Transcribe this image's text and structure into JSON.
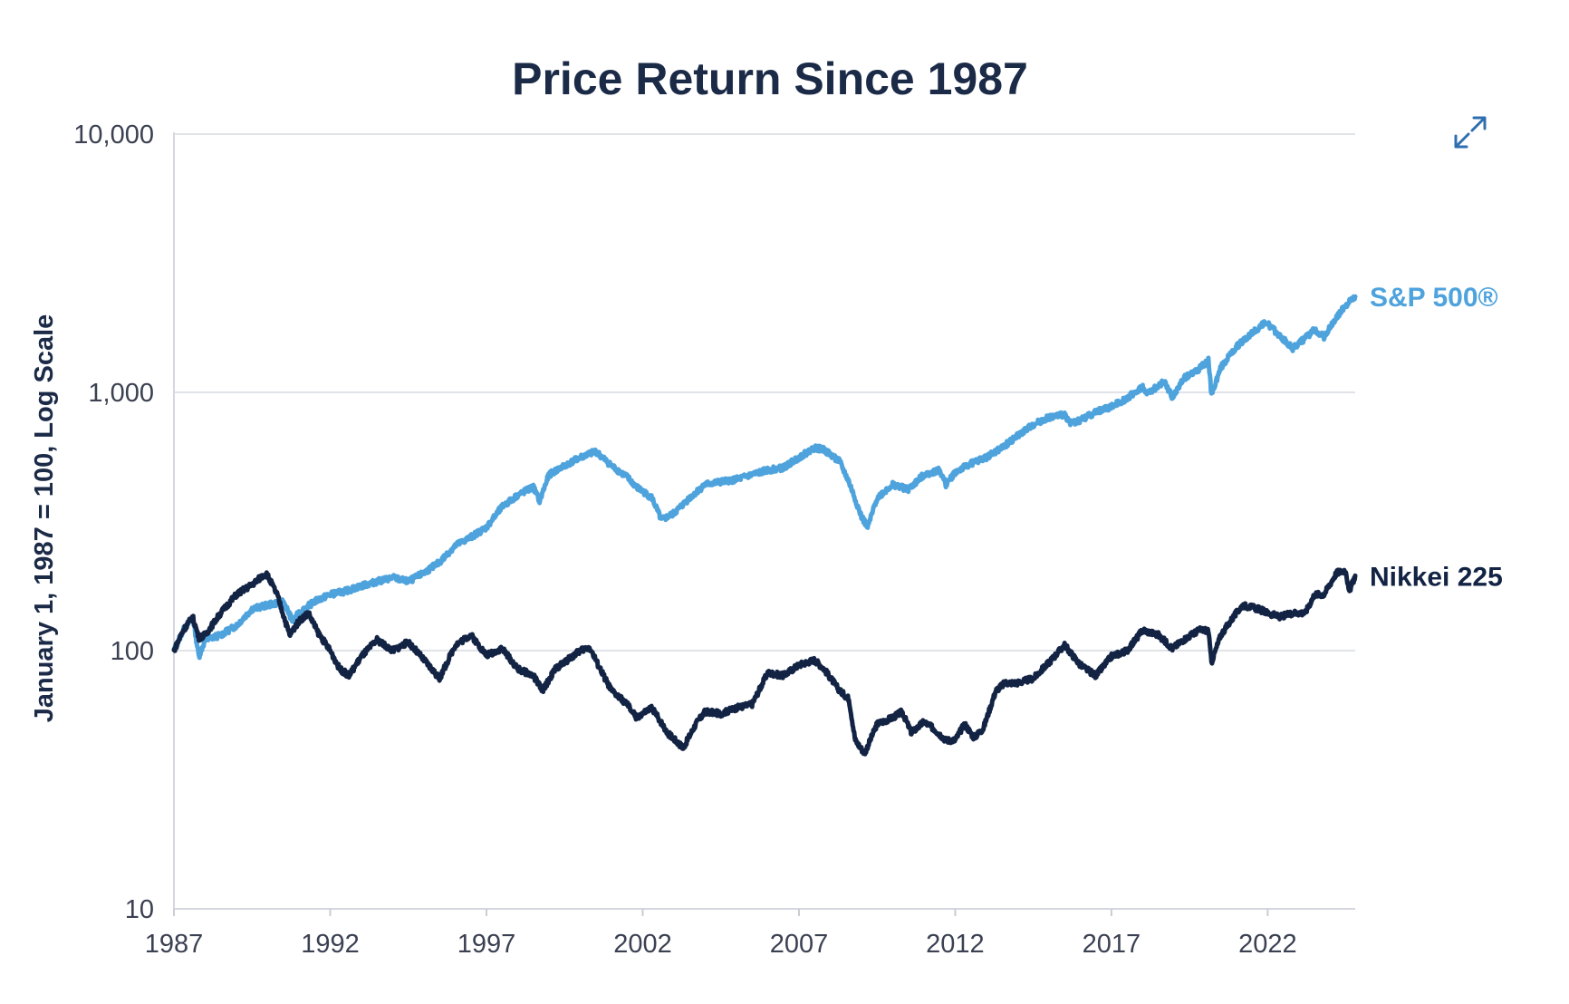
{
  "chart_data": {
    "type": "line",
    "title": "Price Return Since 1987",
    "xlabel": "",
    "ylabel": "January 1, 1987 = 100, Log Scale",
    "y_scale": "log",
    "ylim": [
      10,
      10000
    ],
    "xlim": [
      1987,
      2024.8
    ],
    "y_ticks": [
      {
        "value": 10,
        "label": "10"
      },
      {
        "value": 100,
        "label": "100"
      },
      {
        "value": 1000,
        "label": "1,000"
      },
      {
        "value": 10000,
        "label": "10,000"
      }
    ],
    "x_ticks": [
      {
        "value": 1987,
        "label": "1987"
      },
      {
        "value": 1992,
        "label": "1992"
      },
      {
        "value": 1997,
        "label": "1997"
      },
      {
        "value": 2002,
        "label": "2002"
      },
      {
        "value": 2007,
        "label": "2007"
      },
      {
        "value": 2012,
        "label": "2012"
      },
      {
        "value": 2017,
        "label": "2017"
      },
      {
        "value": 2022,
        "label": "2022"
      }
    ],
    "gridlines": "horizontal",
    "series": [
      {
        "name": "S&P 500®",
        "color": "#4ea3dd",
        "points": [
          [
            1987.0,
            100
          ],
          [
            1987.3,
            120
          ],
          [
            1987.6,
            135
          ],
          [
            1987.8,
            95
          ],
          [
            1988.0,
            110
          ],
          [
            1988.5,
            115
          ],
          [
            1989.0,
            125
          ],
          [
            1989.5,
            145
          ],
          [
            1990.0,
            150
          ],
          [
            1990.5,
            155
          ],
          [
            1990.8,
            130
          ],
          [
            1991.0,
            140
          ],
          [
            1991.5,
            155
          ],
          [
            1992.0,
            165
          ],
          [
            1992.5,
            170
          ],
          [
            1993.0,
            178
          ],
          [
            1993.5,
            185
          ],
          [
            1994.0,
            192
          ],
          [
            1994.5,
            185
          ],
          [
            1995.0,
            200
          ],
          [
            1995.5,
            220
          ],
          [
            1996.0,
            255
          ],
          [
            1996.5,
            275
          ],
          [
            1997.0,
            300
          ],
          [
            1997.5,
            360
          ],
          [
            1998.0,
            400
          ],
          [
            1998.5,
            430
          ],
          [
            1998.7,
            380
          ],
          [
            1999.0,
            480
          ],
          [
            1999.5,
            520
          ],
          [
            2000.0,
            560
          ],
          [
            2000.5,
            590
          ],
          [
            2001.0,
            520
          ],
          [
            2001.5,
            470
          ],
          [
            2001.8,
            430
          ],
          [
            2002.3,
            390
          ],
          [
            2002.6,
            320
          ],
          [
            2003.0,
            340
          ],
          [
            2003.5,
            390
          ],
          [
            2004.0,
            440
          ],
          [
            2004.5,
            450
          ],
          [
            2005.0,
            460
          ],
          [
            2005.5,
            480
          ],
          [
            2006.0,
            500
          ],
          [
            2006.5,
            510
          ],
          [
            2007.0,
            560
          ],
          [
            2007.5,
            610
          ],
          [
            2007.8,
            600
          ],
          [
            2008.3,
            540
          ],
          [
            2008.6,
            450
          ],
          [
            2009.0,
            330
          ],
          [
            2009.2,
            300
          ],
          [
            2009.5,
            390
          ],
          [
            2010.0,
            440
          ],
          [
            2010.5,
            420
          ],
          [
            2011.0,
            480
          ],
          [
            2011.5,
            500
          ],
          [
            2011.7,
            440
          ],
          [
            2012.0,
            490
          ],
          [
            2012.5,
            530
          ],
          [
            2013.0,
            560
          ],
          [
            2013.5,
            610
          ],
          [
            2014.0,
            680
          ],
          [
            2014.5,
            750
          ],
          [
            2015.0,
            800
          ],
          [
            2015.5,
            820
          ],
          [
            2015.7,
            760
          ],
          [
            2016.0,
            780
          ],
          [
            2016.5,
            840
          ],
          [
            2017.0,
            880
          ],
          [
            2017.5,
            950
          ],
          [
            2018.0,
            1050
          ],
          [
            2018.1,
            980
          ],
          [
            2018.7,
            1100
          ],
          [
            2018.95,
            950
          ],
          [
            2019.3,
            1130
          ],
          [
            2019.8,
            1230
          ],
          [
            2020.1,
            1330
          ],
          [
            2020.2,
            980
          ],
          [
            2020.5,
            1250
          ],
          [
            2021.0,
            1500
          ],
          [
            2021.5,
            1700
          ],
          [
            2021.95,
            1870
          ],
          [
            2022.4,
            1650
          ],
          [
            2022.8,
            1480
          ],
          [
            2023.2,
            1620
          ],
          [
            2023.5,
            1750
          ],
          [
            2023.8,
            1640
          ],
          [
            2024.2,
            1950
          ],
          [
            2024.5,
            2180
          ],
          [
            2024.8,
            2350
          ]
        ]
      },
      {
        "name": "Nikkei 225",
        "color": "#132344",
        "points": [
          [
            1987.0,
            100
          ],
          [
            1987.3,
            120
          ],
          [
            1987.6,
            135
          ],
          [
            1987.8,
            112
          ],
          [
            1988.0,
            115
          ],
          [
            1988.5,
            140
          ],
          [
            1989.0,
            165
          ],
          [
            1989.5,
            180
          ],
          [
            1989.95,
            200
          ],
          [
            1990.3,
            165
          ],
          [
            1990.7,
            115
          ],
          [
            1991.0,
            130
          ],
          [
            1991.3,
            140
          ],
          [
            1991.6,
            118
          ],
          [
            1992.0,
            100
          ],
          [
            1992.3,
            85
          ],
          [
            1992.6,
            80
          ],
          [
            1993.0,
            95
          ],
          [
            1993.5,
            110
          ],
          [
            1994.0,
            100
          ],
          [
            1994.5,
            108
          ],
          [
            1995.0,
            92
          ],
          [
            1995.5,
            78
          ],
          [
            1996.0,
            105
          ],
          [
            1996.5,
            115
          ],
          [
            1997.0,
            96
          ],
          [
            1997.5,
            102
          ],
          [
            1998.0,
            85
          ],
          [
            1998.5,
            80
          ],
          [
            1998.8,
            70
          ],
          [
            1999.2,
            85
          ],
          [
            1999.6,
            92
          ],
          [
            2000.0,
            100
          ],
          [
            2000.3,
            103
          ],
          [
            2000.7,
            82
          ],
          [
            2001.0,
            70
          ],
          [
            2001.5,
            62
          ],
          [
            2001.8,
            55
          ],
          [
            2002.3,
            60
          ],
          [
            2002.8,
            48
          ],
          [
            2003.3,
            42
          ],
          [
            2003.7,
            52
          ],
          [
            2004.0,
            58
          ],
          [
            2004.5,
            57
          ],
          [
            2005.0,
            60
          ],
          [
            2005.5,
            62
          ],
          [
            2006.0,
            82
          ],
          [
            2006.5,
            80
          ],
          [
            2007.0,
            88
          ],
          [
            2007.5,
            92
          ],
          [
            2007.8,
            85
          ],
          [
            2008.3,
            70
          ],
          [
            2008.6,
            65
          ],
          [
            2008.8,
            45
          ],
          [
            2009.1,
            40
          ],
          [
            2009.5,
            52
          ],
          [
            2010.0,
            55
          ],
          [
            2010.3,
            58
          ],
          [
            2010.6,
            48
          ],
          [
            2011.0,
            53
          ],
          [
            2011.3,
            50
          ],
          [
            2011.7,
            45
          ],
          [
            2012.0,
            45
          ],
          [
            2012.3,
            52
          ],
          [
            2012.6,
            46
          ],
          [
            2012.9,
            50
          ],
          [
            2013.3,
            70
          ],
          [
            2013.6,
            75
          ],
          [
            2014.0,
            75
          ],
          [
            2014.5,
            78
          ],
          [
            2015.0,
            90
          ],
          [
            2015.5,
            105
          ],
          [
            2016.0,
            88
          ],
          [
            2016.5,
            80
          ],
          [
            2017.0,
            95
          ],
          [
            2017.5,
            100
          ],
          [
            2018.0,
            120
          ],
          [
            2018.5,
            115
          ],
          [
            2018.95,
            102
          ],
          [
            2019.3,
            110
          ],
          [
            2019.8,
            120
          ],
          [
            2020.1,
            120
          ],
          [
            2020.2,
            90
          ],
          [
            2020.5,
            115
          ],
          [
            2020.9,
            135
          ],
          [
            2021.2,
            150
          ],
          [
            2021.7,
            145
          ],
          [
            2022.0,
            140
          ],
          [
            2022.4,
            135
          ],
          [
            2022.8,
            140
          ],
          [
            2023.2,
            140
          ],
          [
            2023.5,
            165
          ],
          [
            2023.8,
            165
          ],
          [
            2024.2,
            200
          ],
          [
            2024.5,
            205
          ],
          [
            2024.6,
            168
          ],
          [
            2024.8,
            195
          ]
        ]
      }
    ]
  }
}
